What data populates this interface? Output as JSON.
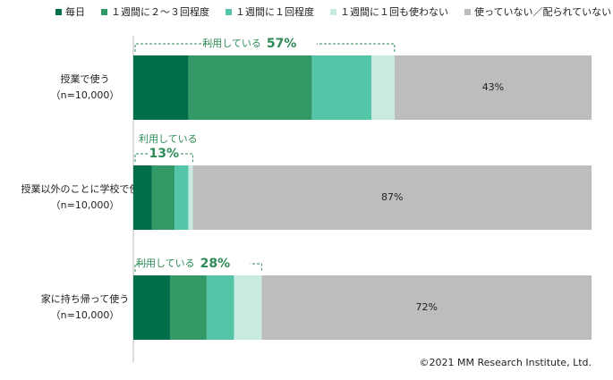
{
  "chart_data": {
    "type": "stacked-bar-horizontal",
    "categories": [
      "授業で使う",
      "授業以外のことに学校で使う",
      "家に持ち帰って使う"
    ],
    "category_notes": [
      "（n=10,000）",
      "（n=10,000）",
      "（n=10,000）"
    ],
    "series": [
      {
        "name": "毎日",
        "color": "#006e4a",
        "values": [
          12,
          4,
          8
        ]
      },
      {
        "name": "１週間に２～３回程度",
        "color": "#339966",
        "values": [
          27,
          5,
          8
        ]
      },
      {
        "name": "１週間に１回程度",
        "color": "#55c5a8",
        "values": [
          13,
          3,
          6
        ]
      },
      {
        "name": "１週間に１回も使わない",
        "color": "#c8eae0",
        "values": [
          5,
          1,
          6
        ]
      },
      {
        "name": "使っていない／配られていない",
        "color": "#bdbdbd",
        "values": [
          43,
          87,
          72
        ],
        "value_labels": [
          "43%",
          "87%",
          "72%"
        ]
      }
    ],
    "annotations": [
      {
        "text": "利用している",
        "value": 57,
        "label": "57%"
      },
      {
        "text": "利用している",
        "value": 13,
        "label": "13%"
      },
      {
        "text": "利用している",
        "value": 28,
        "label": "28%"
      }
    ],
    "xlim": [
      0,
      100
    ],
    "source": "©2021 MM Research Institute, Ltd."
  }
}
